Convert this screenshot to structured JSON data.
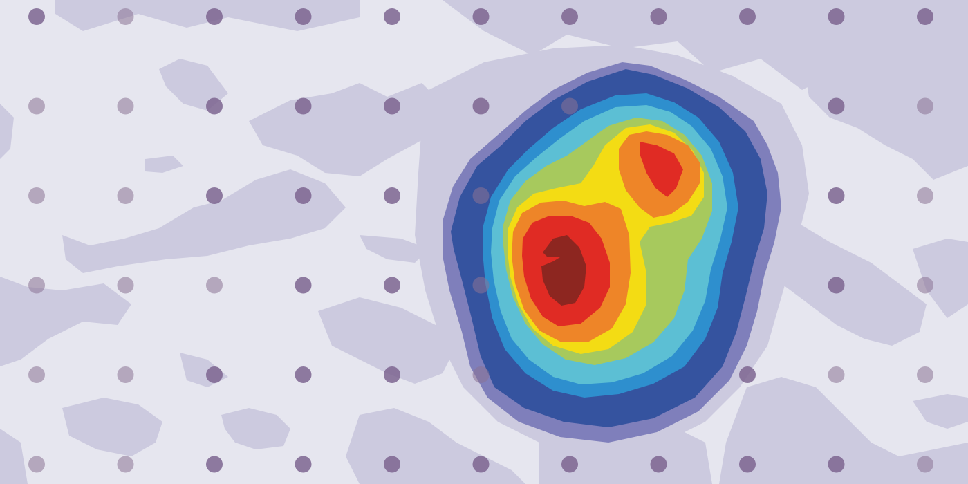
{
  "chart_data": {
    "type": "heatmap",
    "title": "",
    "subtitle": "",
    "xlabel": "",
    "ylabel": "",
    "legend": "none",
    "grid": false,
    "axes_visible": false,
    "sensor_grid": {
      "columns": 11,
      "rows": 6
    },
    "contour_levels": [
      0,
      1,
      2,
      3,
      4,
      5,
      6,
      7,
      8,
      9
    ],
    "level_colors": [
      "#e6e6ef",
      "#cccadf",
      "#7f7fbb",
      "#35539f",
      "#2e8fce",
      "#5cbfd4",
      "#a7c95d",
      "#f3dc14",
      "#ee8528",
      "#e02b24",
      "#8d2620"
    ],
    "peaks": [
      {
        "name": "",
        "level": 9,
        "relative_strength": 1.0
      },
      {
        "name": "",
        "level": 8,
        "relative_strength": 0.85
      }
    ]
  }
}
